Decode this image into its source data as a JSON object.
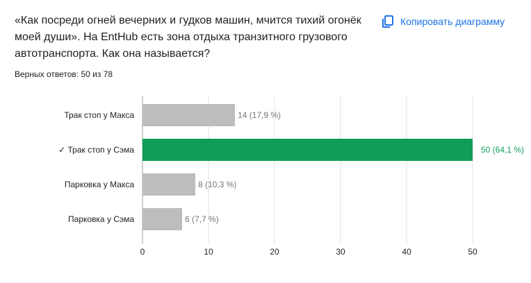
{
  "question": {
    "text": "«Как посреди огней вечерних и гудков машин, мчится тихий огонёк моей души». На EntHub есть зона отдыха транзитного грузового автотранспорта. Как она называется?"
  },
  "summary": {
    "correct_answers": "Верных ответов: 50 из 78"
  },
  "toolbar": {
    "copy_label": "Копировать диаграмму",
    "copy_icon": "copy-icon"
  },
  "colors": {
    "accent": "#1a73e8",
    "correct": "#0f9d58",
    "neutral": "#bdbdbd",
    "label_gray": "#757575",
    "grid": "#e0e0e0"
  },
  "chart_data": {
    "type": "bar",
    "orientation": "horizontal",
    "categories": [
      "Трак стоп у Макса",
      "✓ Трак стоп у Сэма",
      "Парковка у Макса",
      "Парковка у Сэма"
    ],
    "values": [
      14,
      50,
      8,
      6
    ],
    "data_labels": [
      "14 (17,9 %)",
      "50 (64,1 %)",
      "8 (10,3 %)",
      "6 (7,7 %)"
    ],
    "correct": [
      false,
      true,
      false,
      false
    ],
    "xlim": [
      0,
      50
    ],
    "xticks": [
      "0",
      "10",
      "20",
      "30",
      "40",
      "50"
    ],
    "grid": true,
    "title": "",
    "xlabel": "",
    "ylabel": ""
  }
}
